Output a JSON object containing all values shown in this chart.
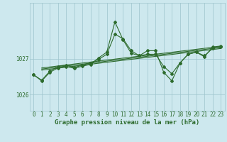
{
  "title": "Graphe pression niveau de la mer (hPa)",
  "bg_color": "#cde8ee",
  "grid_color": "#9dc4cc",
  "line_color": "#2d6b2d",
  "x_min": -0.5,
  "x_max": 23.5,
  "y_min": 1025.55,
  "y_max": 1028.55,
  "yticks": [
    1026,
    1027
  ],
  "xticks": [
    0,
    1,
    2,
    3,
    4,
    5,
    6,
    7,
    8,
    9,
    10,
    11,
    12,
    13,
    14,
    15,
    16,
    17,
    18,
    19,
    20,
    21,
    22,
    23
  ],
  "series_main": [
    [
      0,
      1026.55
    ],
    [
      1,
      1026.38
    ],
    [
      2,
      1026.62
    ],
    [
      3,
      1026.74
    ],
    [
      4,
      1026.78
    ],
    [
      5,
      1026.73
    ],
    [
      6,
      1026.79
    ],
    [
      7,
      1026.84
    ],
    [
      8,
      1027.02
    ],
    [
      9,
      1027.18
    ],
    [
      10,
      1028.02
    ],
    [
      11,
      1027.52
    ],
    [
      12,
      1027.15
    ],
    [
      13,
      1027.08
    ],
    [
      14,
      1027.22
    ],
    [
      15,
      1027.22
    ],
    [
      16,
      1026.62
    ],
    [
      17,
      1026.38
    ],
    [
      18,
      1026.88
    ],
    [
      19,
      1027.12
    ],
    [
      20,
      1027.18
    ],
    [
      21,
      1027.05
    ],
    [
      22,
      1027.32
    ],
    [
      23,
      1027.35
    ]
  ],
  "series2": [
    [
      0,
      1026.55
    ],
    [
      1,
      1026.4
    ],
    [
      2,
      1026.65
    ],
    [
      3,
      1026.78
    ],
    [
      4,
      1026.82
    ],
    [
      5,
      1026.75
    ],
    [
      6,
      1026.82
    ],
    [
      7,
      1026.88
    ],
    [
      8,
      1026.98
    ],
    [
      9,
      1027.12
    ],
    [
      10,
      1027.68
    ],
    [
      11,
      1027.55
    ],
    [
      12,
      1027.22
    ],
    [
      13,
      1027.08
    ],
    [
      14,
      1027.12
    ],
    [
      15,
      1027.12
    ],
    [
      16,
      1026.78
    ],
    [
      17,
      1026.58
    ],
    [
      18,
      1026.88
    ],
    [
      19,
      1027.12
    ],
    [
      20,
      1027.18
    ],
    [
      21,
      1027.08
    ],
    [
      22,
      1027.28
    ],
    [
      23,
      1027.32
    ]
  ],
  "trend_lines": [
    [
      [
        1,
        1026.68
      ],
      [
        23,
        1027.28
      ]
    ],
    [
      [
        1,
        1026.71
      ],
      [
        23,
        1027.31
      ]
    ],
    [
      [
        1,
        1026.74
      ],
      [
        23,
        1027.34
      ]
    ]
  ],
  "marker_size": 2.0,
  "linewidth": 0.8,
  "tick_fontsize": 5.5,
  "title_fontsize": 6.5
}
